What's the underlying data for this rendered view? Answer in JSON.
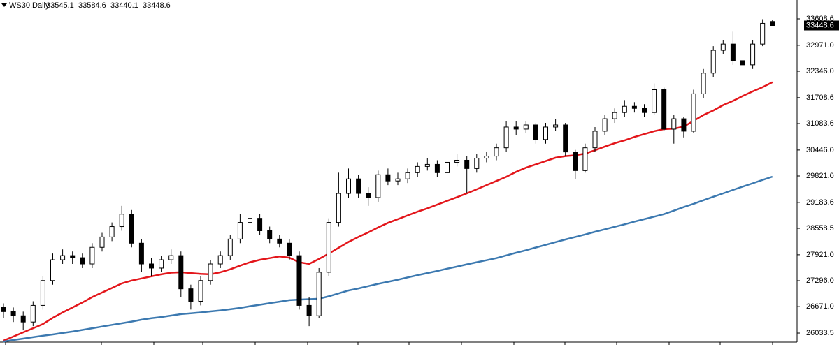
{
  "chart_data": {
    "type": "candlestick",
    "title": "WS30,Daily",
    "up_color": "#ffffff",
    "down_color": "#000000",
    "outline_color": "#000000",
    "open": [
      26650,
      26550,
      26450,
      26300,
      26700,
      27300,
      27800,
      27900,
      27850,
      27700,
      28100,
      28350,
      28600,
      28900,
      28200,
      27700,
      27600,
      27800,
      27900,
      27100,
      26800,
      27300,
      27700,
      27900,
      28300,
      28700,
      28800,
      28500,
      28300,
      28200,
      27900,
      26700,
      26450,
      27500,
      28700,
      29400,
      29750,
      29400,
      29300,
      29850,
      29700,
      29750,
      29900,
      30050,
      30100,
      29900,
      30150,
      30200,
      30000,
      30250,
      30300,
      30500,
      31000,
      30950,
      31050,
      30700,
      31000,
      31050,
      30400,
      29950,
      30500,
      30900,
      31200,
      31350,
      31500,
      31450,
      31350,
      31900,
      30950,
      31200,
      30900,
      31800,
      32300,
      32850,
      33000,
      32600,
      32500,
      33000,
      33545.1
    ],
    "high": [
      26750,
      26650,
      26550,
      26800,
      27400,
      27950,
      28050,
      28000,
      27950,
      28200,
      28450,
      28700,
      29100,
      29000,
      28300,
      27850,
      27900,
      28050,
      28000,
      27200,
      27400,
      27800,
      28000,
      28400,
      28900,
      28950,
      28900,
      28600,
      28400,
      28300,
      28000,
      26900,
      27600,
      28800,
      29900,
      30000,
      29850,
      29550,
      29950,
      30000,
      29900,
      30000,
      30150,
      30250,
      30200,
      30300,
      30350,
      30300,
      30350,
      30400,
      30600,
      31150,
      31150,
      31150,
      31100,
      31100,
      31200,
      31100,
      30450,
      30600,
      31000,
      31300,
      31450,
      31650,
      31600,
      31550,
      32050,
      31950,
      31300,
      31250,
      31900,
      32400,
      32950,
      33100,
      33300,
      32700,
      33100,
      33600,
      33584.6
    ],
    "low": [
      26400,
      26300,
      26100,
      26200,
      26600,
      27200,
      27700,
      27700,
      27600,
      27600,
      28000,
      28250,
      28500,
      28100,
      27500,
      27400,
      27500,
      27700,
      26900,
      26600,
      26700,
      27200,
      27600,
      27800,
      28200,
      28600,
      28400,
      28200,
      28100,
      27800,
      26600,
      26200,
      26400,
      27400,
      28600,
      29300,
      29300,
      29100,
      29200,
      29600,
      29600,
      29650,
      29800,
      29950,
      29800,
      29800,
      30050,
      29400,
      29900,
      30150,
      30200,
      30400,
      30800,
      30850,
      30600,
      30600,
      30900,
      30300,
      29750,
      29900,
      30400,
      30800,
      31100,
      31250,
      31350,
      31250,
      31300,
      30900,
      30600,
      30750,
      30850,
      31700,
      32200,
      32750,
      32500,
      32200,
      32400,
      32950,
      33440.1
    ],
    "close": [
      26550,
      26450,
      26300,
      26700,
      27300,
      27800,
      27900,
      27850,
      27700,
      28100,
      28350,
      28600,
      28900,
      28200,
      27700,
      27600,
      27800,
      27900,
      27100,
      26800,
      27300,
      27700,
      27900,
      28300,
      28700,
      28800,
      28500,
      28300,
      28200,
      27900,
      26700,
      26450,
      27500,
      28700,
      29400,
      29750,
      29400,
      29300,
      29850,
      29700,
      29750,
      29900,
      30050,
      30100,
      29900,
      30150,
      30200,
      30000,
      30250,
      30300,
      30500,
      31000,
      30950,
      31050,
      30700,
      31000,
      31050,
      30400,
      29950,
      30500,
      30900,
      31200,
      31350,
      31500,
      31450,
      31350,
      31900,
      30950,
      31200,
      30900,
      31800,
      32300,
      32850,
      33000,
      32600,
      32500,
      33000,
      33500,
      33448.6
    ],
    "series": [
      {
        "color": "#e3161b",
        "values": [
          25850,
          25950,
          26050,
          26150,
          26250,
          26400,
          26530,
          26650,
          26770,
          26900,
          27010,
          27120,
          27230,
          27300,
          27350,
          27400,
          27450,
          27490,
          27500,
          27480,
          27460,
          27450,
          27500,
          27570,
          27660,
          27740,
          27800,
          27840,
          27880,
          27850,
          27740,
          27700,
          27820,
          27950,
          28090,
          28230,
          28350,
          28460,
          28580,
          28690,
          28780,
          28870,
          28960,
          29040,
          29130,
          29220,
          29310,
          29400,
          29500,
          29600,
          29700,
          29800,
          29920,
          30020,
          30100,
          30180,
          30260,
          30300,
          30320,
          30360,
          30440,
          30530,
          30610,
          30680,
          30760,
          30830,
          30900,
          30950,
          30960,
          31010,
          31150,
          31290,
          31400,
          31530,
          31630,
          31750,
          31860,
          31960,
          32080
        ]
      },
      {
        "color": "#3c79b0",
        "values": [
          25830,
          25865,
          25900,
          25935,
          25970,
          26000,
          26035,
          26070,
          26110,
          26150,
          26190,
          26230,
          26270,
          26310,
          26355,
          26390,
          26420,
          26455,
          26490,
          26510,
          26530,
          26555,
          26580,
          26607,
          26640,
          26680,
          26715,
          26755,
          26790,
          26827,
          26840,
          26850,
          26860,
          26920,
          26990,
          27060,
          27110,
          27165,
          27220,
          27270,
          27320,
          27375,
          27430,
          27480,
          27530,
          27585,
          27635,
          27690,
          27740,
          27790,
          27840,
          27905,
          27970,
          28030,
          28095,
          28160,
          28225,
          28290,
          28350,
          28410,
          28475,
          28535,
          28595,
          28655,
          28720,
          28780,
          28840,
          28900,
          28985,
          29070,
          29150,
          29235,
          29320,
          29400,
          29485,
          29565,
          29645,
          29725,
          29805
        ]
      }
    ],
    "ylim": [
      25815,
      34063
    ],
    "yticks": [
      33608.6,
      {
        "value": 32971.0,
        "label": "32971.0"
      },
      {
        "value": 32346.0,
        "label": "32346.0"
      },
      31708.6,
      31083.6,
      {
        "value": 30446.0,
        "label": "30446.0"
      },
      {
        "value": 29821.0,
        "label": "29821.0"
      },
      29183.6,
      28558.5,
      {
        "value": 27921.0,
        "label": "27921.0"
      },
      {
        "value": 27296.0,
        "label": "27296.0"
      },
      {
        "value": 26671.0,
        "label": "26671.0"
      },
      26033.5
    ]
  }
}
